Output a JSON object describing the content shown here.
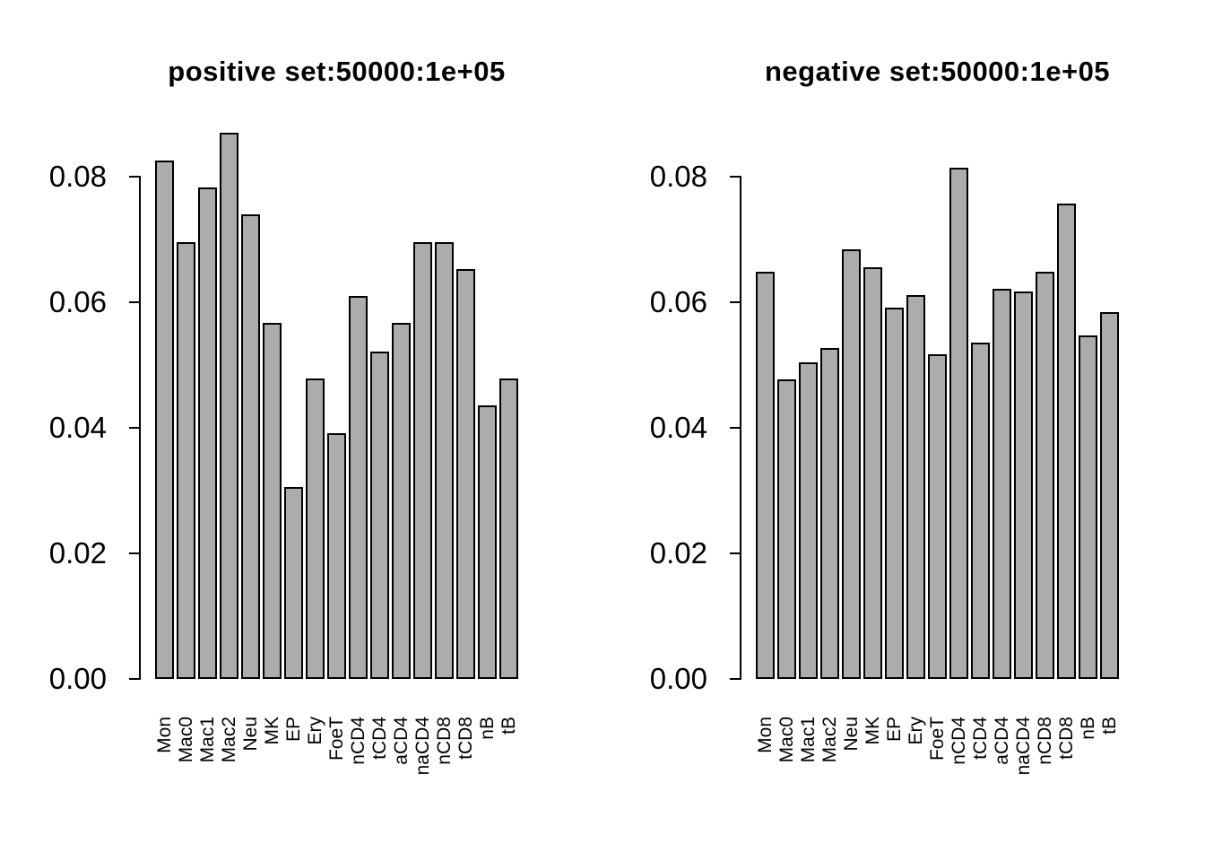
{
  "figure": {
    "background": "#ffffff"
  },
  "chart_data": [
    {
      "type": "bar",
      "title": "positive set:50000:1e+05",
      "categories": [
        "Mon",
        "Mac0",
        "Mac1",
        "Mac2",
        "Neu",
        "MK",
        "EP",
        "Ery",
        "FoeT",
        "nCD4",
        "tCD4",
        "aCD4",
        "naCD4",
        "nCD8",
        "tCD8",
        "nB",
        "tB"
      ],
      "values": [
        0.0825,
        0.0695,
        0.0783,
        0.087,
        0.074,
        0.0567,
        0.0306,
        0.0478,
        0.0392,
        0.061,
        0.0522,
        0.0567,
        0.0695,
        0.0695,
        0.0653,
        0.0436,
        0.0478
      ],
      "xlabel": "",
      "ylabel": "",
      "ylim": [
        0,
        0.08
      ],
      "yticks": [
        0,
        0.02,
        0.04,
        0.06,
        0.08
      ],
      "ytick_labels": [
        "0.00",
        "0.02",
        "0.04",
        "0.06",
        "0.08"
      ],
      "grid": false,
      "legend": null,
      "bar_fill": "#acacac",
      "bar_border": "#000000",
      "axis_color": "#000000",
      "text_color": "#000000"
    },
    {
      "type": "bar",
      "title": "negative set:50000:1e+05",
      "categories": [
        "Mon",
        "Mac0",
        "Mac1",
        "Mac2",
        "Neu",
        "MK",
        "EP",
        "Ery",
        "FoeT",
        "nCD4",
        "tCD4",
        "aCD4",
        "naCD4",
        "nCD8",
        "tCD8",
        "nB",
        "tB"
      ],
      "values": [
        0.0649,
        0.0477,
        0.0504,
        0.0527,
        0.0684,
        0.0655,
        0.0592,
        0.0612,
        0.0517,
        0.0814,
        0.0536,
        0.0622,
        0.0617,
        0.0649,
        0.0757,
        0.0547,
        0.0584
      ],
      "xlabel": "",
      "ylabel": "",
      "ylim": [
        0,
        0.08
      ],
      "yticks": [
        0,
        0.02,
        0.04,
        0.06,
        0.08
      ],
      "ytick_labels": [
        "0.00",
        "0.02",
        "0.04",
        "0.06",
        "0.08"
      ],
      "grid": false,
      "legend": null,
      "bar_fill": "#acacac",
      "bar_border": "#000000",
      "axis_color": "#000000",
      "text_color": "#000000"
    }
  ]
}
